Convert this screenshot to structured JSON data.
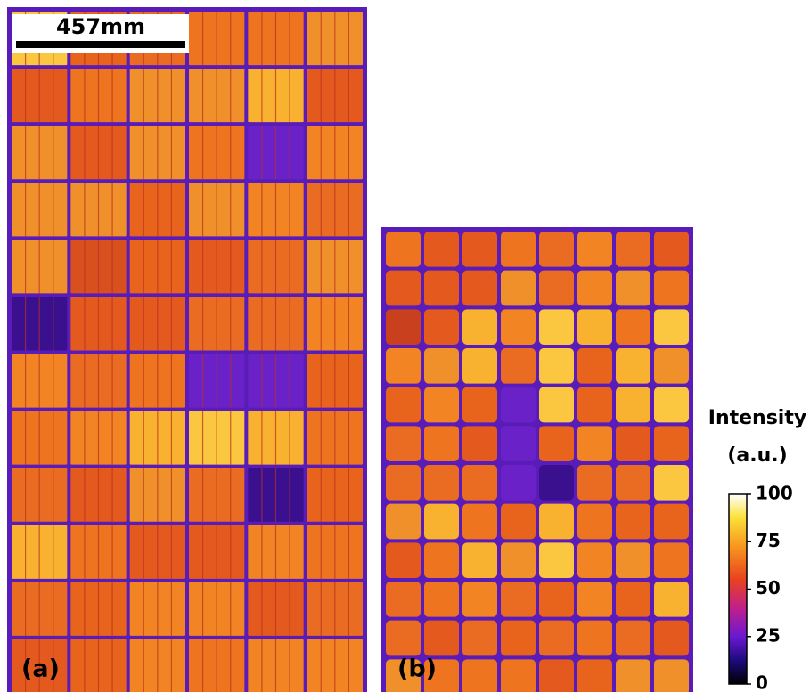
{
  "scale_bar": {
    "label": "457mm"
  },
  "panels": [
    {
      "label": "(a)"
    },
    {
      "label": "(b)"
    }
  ],
  "colorbar": {
    "title": "Intensity",
    "unit": "(a.u.)",
    "lim": [
      0,
      100
    ],
    "ticks": [
      0,
      25,
      50,
      75,
      100
    ]
  }
}
